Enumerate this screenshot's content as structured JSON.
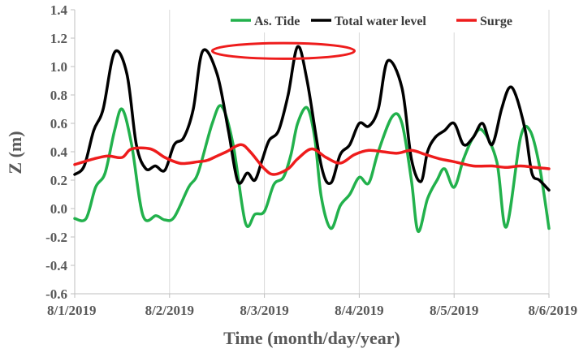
{
  "chart_data": {
    "type": "line",
    "title": "",
    "xlabel": "Time (month/day/year)",
    "ylabel": "Z (m)",
    "xlim": [
      0,
      5
    ],
    "ylim": [
      -0.6,
      1.4
    ],
    "ytick_step": 0.2,
    "x_tick_labels": [
      "8/1/2019",
      "8/2/2019",
      "8/3/2019",
      "8/4/2019",
      "8/5/2019",
      "8/6/2019"
    ],
    "y_tick_labels": [
      "-0.6",
      "-0.4",
      "-0.2",
      "0.0",
      "0.2",
      "0.4",
      "0.6",
      "0.8",
      "1.0",
      "1.2",
      "1.4"
    ],
    "grid": "vertical",
    "legend_position": "top",
    "series": [
      {
        "name": "As. Tide",
        "color": "#22b14c",
        "x": [
          0,
          0.12,
          0.22,
          0.32,
          0.42,
          0.5,
          0.6,
          0.72,
          0.86,
          0.95,
          1.05,
          1.2,
          1.3,
          1.45,
          1.55,
          1.67,
          1.8,
          1.9,
          2.0,
          2.1,
          2.2,
          2.28,
          2.35,
          2.45,
          2.53,
          2.6,
          2.7,
          2.8,
          2.9,
          3.0,
          3.1,
          3.2,
          3.35,
          3.45,
          3.55,
          3.62,
          3.72,
          3.82,
          3.9,
          4.0,
          4.1,
          4.2,
          4.3,
          4.45,
          4.55,
          4.7,
          4.8,
          4.9,
          5.0
        ],
        "y": [
          -0.07,
          -0.07,
          0.15,
          0.25,
          0.55,
          0.7,
          0.45,
          -0.05,
          -0.05,
          -0.08,
          -0.06,
          0.15,
          0.25,
          0.6,
          0.72,
          0.45,
          -0.1,
          -0.04,
          -0.02,
          0.17,
          0.22,
          0.38,
          0.6,
          0.71,
          0.5,
          0.08,
          -0.14,
          0.02,
          0.1,
          0.22,
          0.18,
          0.4,
          0.65,
          0.6,
          0.2,
          -0.16,
          0.07,
          0.2,
          0.28,
          0.15,
          0.35,
          0.5,
          0.55,
          0.33,
          -0.13,
          0.5,
          0.55,
          0.3,
          -0.14
        ]
      },
      {
        "name": "Total water level",
        "color": "#000000",
        "x": [
          0,
          0.1,
          0.2,
          0.3,
          0.42,
          0.55,
          0.65,
          0.75,
          0.85,
          0.95,
          1.05,
          1.15,
          1.25,
          1.35,
          1.5,
          1.62,
          1.72,
          1.82,
          1.9,
          1.98,
          2.05,
          2.15,
          2.25,
          2.35,
          2.45,
          2.6,
          2.7,
          2.8,
          2.9,
          3.0,
          3.1,
          3.2,
          3.3,
          3.45,
          3.55,
          3.65,
          3.72,
          3.8,
          3.9,
          4.0,
          4.1,
          4.2,
          4.3,
          4.4,
          4.5,
          4.58,
          4.65,
          4.75,
          4.82,
          4.9,
          5.0
        ],
        "y": [
          0.24,
          0.3,
          0.55,
          0.7,
          1.1,
          0.95,
          0.45,
          0.28,
          0.3,
          0.27,
          0.45,
          0.5,
          0.7,
          1.11,
          0.95,
          0.55,
          0.19,
          0.25,
          0.2,
          0.35,
          0.48,
          0.55,
          0.8,
          1.14,
          0.9,
          0.3,
          0.18,
          0.38,
          0.45,
          0.6,
          0.58,
          0.7,
          1.04,
          0.85,
          0.35,
          0.19,
          0.4,
          0.5,
          0.55,
          0.6,
          0.45,
          0.5,
          0.6,
          0.45,
          0.7,
          0.85,
          0.8,
          0.55,
          0.25,
          0.2,
          0.13
        ]
      },
      {
        "name": "Surge",
        "color": "#ee1c1c",
        "x": [
          0,
          0.2,
          0.35,
          0.5,
          0.6,
          0.8,
          0.95,
          1.1,
          1.2,
          1.3,
          1.4,
          1.5,
          1.6,
          1.75,
          1.85,
          2.0,
          2.1,
          2.25,
          2.35,
          2.5,
          2.65,
          2.8,
          2.95,
          3.1,
          3.25,
          3.4,
          3.55,
          3.7,
          3.85,
          4.0,
          4.2,
          4.4,
          4.55,
          4.7,
          4.85,
          5.0
        ],
        "y": [
          0.31,
          0.35,
          0.37,
          0.36,
          0.42,
          0.42,
          0.36,
          0.32,
          0.32,
          0.33,
          0.34,
          0.37,
          0.4,
          0.45,
          0.4,
          0.28,
          0.24,
          0.28,
          0.35,
          0.42,
          0.36,
          0.32,
          0.38,
          0.41,
          0.4,
          0.39,
          0.41,
          0.38,
          0.35,
          0.33,
          0.3,
          0.3,
          0.29,
          0.3,
          0.29,
          0.28
        ]
      }
    ],
    "annotations": [
      {
        "type": "ellipse",
        "color": "#ee1c1c",
        "x_center": 2.2,
        "y_center": 1.11,
        "x_radius": 0.75,
        "y_radius": 0.055
      }
    ]
  }
}
